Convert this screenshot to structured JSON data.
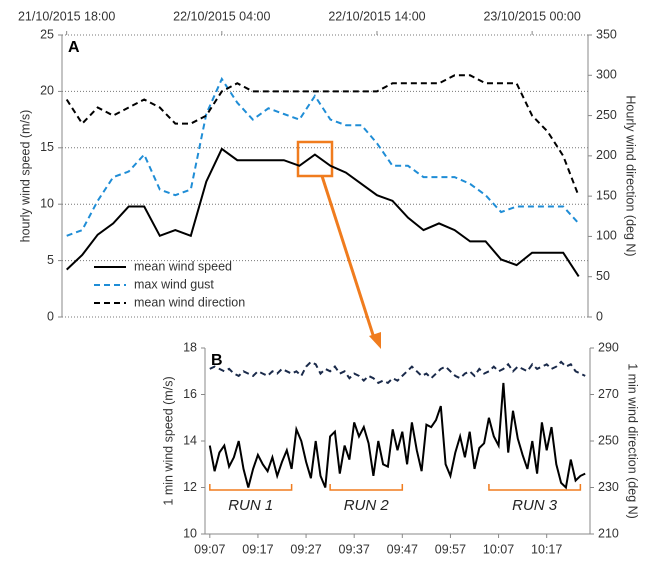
{
  "chart_data": [
    {
      "type": "line",
      "panel_label": "A",
      "y_label": "hourly wind speed (m/s)",
      "y2_label": "Hourly wind direction (deg N)",
      "x": [
        0,
        1,
        2,
        3,
        4,
        5,
        6,
        7,
        8,
        9,
        10,
        11,
        12,
        13,
        14,
        15,
        16,
        17,
        18,
        19,
        20,
        21,
        22,
        23,
        24,
        25,
        26,
        27,
        28,
        29,
        30,
        31,
        32,
        33
      ],
      "xlim": [
        -0.3,
        33.6
      ],
      "xticks": [
        {
          "value": 0,
          "label": "21/10/2015 18:00"
        },
        {
          "value": 10,
          "label": "22/10/2015 04:00"
        },
        {
          "value": 20,
          "label": "22/10/2015 14:00"
        },
        {
          "value": 30,
          "label": "23/10/2015 00:00"
        }
      ],
      "xaxis_position": "top",
      "ylim": [
        0,
        25
      ],
      "yticks": [
        0,
        5,
        10,
        15,
        20,
        25
      ],
      "y2lim": [
        0,
        350
      ],
      "y2ticks": [
        0,
        50,
        100,
        150,
        200,
        250,
        300,
        350
      ],
      "grid": true,
      "legend": "lower left",
      "series": [
        {
          "name": "mean wind speed",
          "color": "#000000",
          "line_style": "solid",
          "values": [
            4.2,
            5.5,
            7.3,
            8.3,
            9.8,
            9.8,
            7.2,
            7.7,
            7.2,
            12,
            14.9,
            13.9,
            13.9,
            13.9,
            13.9,
            13.4,
            14.4,
            13.4,
            12.8,
            11.8,
            10.8,
            10.3,
            8.8,
            7.7,
            8.3,
            7.7,
            6.7,
            6.7,
            5.1,
            4.6,
            5.7,
            5.7,
            5.7,
            3.6
          ]
        },
        {
          "name": "max wind gust",
          "color": "#1f8dd6",
          "line_style": "dashed",
          "values": [
            7.2,
            7.7,
            10.3,
            12.4,
            12.9,
            14.4,
            11.3,
            10.8,
            11.3,
            18,
            21.1,
            19,
            17.5,
            18.5,
            18,
            17.5,
            19.6,
            17.5,
            17,
            17,
            15.4,
            13.4,
            13.4,
            12.4,
            12.4,
            12.4,
            11.8,
            10.8,
            9.3,
            9.8,
            9.8,
            9.8,
            9.8,
            8.3
          ]
        },
        {
          "name": "mean wind direction",
          "color": "#000000",
          "line_style": "dashed",
          "axis": "y2",
          "values": [
            270,
            240,
            260,
            250,
            260,
            270,
            260,
            240,
            240,
            250,
            280,
            290,
            280,
            280,
            280,
            280,
            280,
            280,
            280,
            280,
            280,
            290,
            290,
            290,
            290,
            300,
            300,
            290,
            290,
            290,
            250,
            230,
            200,
            150
          ]
        }
      ]
    },
    {
      "type": "line",
      "panel_label": "B",
      "y_label": "1 min wind speed (m/s)",
      "y2_label": "1 min wind direction (deg N)",
      "x": [
        0,
        1,
        2,
        3,
        4,
        5,
        6,
        7,
        8,
        9,
        10,
        11,
        12,
        13,
        14,
        15,
        16,
        17,
        18,
        19,
        20,
        21,
        22,
        23,
        24,
        25,
        26,
        27,
        28,
        29,
        30,
        31,
        32,
        33,
        34,
        35,
        36,
        37,
        38,
        39,
        40,
        41,
        42,
        43,
        44,
        45,
        46,
        47,
        48,
        49,
        50,
        51,
        52,
        53,
        54,
        55,
        56,
        57,
        58,
        59,
        60,
        61,
        62,
        63,
        64,
        65,
        66,
        67,
        68,
        69,
        70,
        71,
        72,
        73,
        74,
        75,
        76,
        77,
        78
      ],
      "xlim": [
        -1,
        79
      ],
      "xticks": [
        {
          "value": 0,
          "label": "09:07"
        },
        {
          "value": 10,
          "label": "09:17"
        },
        {
          "value": 20,
          "label": "09:27"
        },
        {
          "value": 30,
          "label": "09:37"
        },
        {
          "value": 40,
          "label": "09:47"
        },
        {
          "value": 50,
          "label": "09:57"
        },
        {
          "value": 60,
          "label": "10:07"
        },
        {
          "value": 70,
          "label": "10:17"
        }
      ],
      "xaxis_position": "bottom",
      "ylim": [
        10,
        18
      ],
      "yticks": [
        10,
        12,
        14,
        16,
        18
      ],
      "y2lim": [
        210,
        290
      ],
      "y2ticks": [
        210,
        230,
        250,
        270,
        290
      ],
      "grid": false,
      "annotations": [
        {
          "label": "RUN 1",
          "start": 0,
          "end": 17
        },
        {
          "label": "RUN 2",
          "start": 25,
          "end": 40
        },
        {
          "label": "RUN 3",
          "start": 58,
          "end": 77
        }
      ],
      "series": [
        {
          "name": "1 min wind speed",
          "color": "#000000",
          "line_style": "solid",
          "values": [
            13.8,
            12.7,
            13.5,
            13.8,
            12.9,
            13.3,
            14.0,
            12.8,
            12.0,
            12.8,
            13.4,
            13.0,
            12.7,
            13.3,
            12.5,
            13.1,
            13.6,
            12.8,
            14.5,
            14.0,
            13.1,
            12.4,
            14.0,
            12.5,
            12.0,
            14.2,
            14.4,
            12.6,
            13.8,
            13.2,
            14.8,
            14.2,
            14.6,
            13.9,
            12.5,
            14.0,
            13.0,
            12.9,
            14.5,
            13.6,
            14.4,
            13.0,
            14.8,
            13.6,
            12.7,
            14.7,
            14.6,
            14.9,
            15.5,
            13.0,
            12.5,
            13.5,
            14.2,
            13.3,
            14.4,
            12.8,
            13.7,
            13.9,
            15.0,
            14.2,
            13.8,
            16.5,
            13.5,
            15.3,
            14.1,
            13.4,
            12.8,
            14.0,
            12.6,
            14.8,
            13.6,
            14.6,
            13.0,
            12.2,
            12.0,
            13.2,
            12.3,
            12.5,
            12.6
          ]
        },
        {
          "name": "1 min wind direction",
          "color": "#1a2a4a",
          "line_style": "dashed",
          "axis": "y2",
          "values": [
            281,
            282,
            281,
            280,
            281,
            279,
            278,
            280,
            279,
            278,
            280,
            279,
            278,
            280,
            279,
            281,
            280,
            279,
            280,
            278,
            282,
            284,
            283,
            279,
            281,
            280,
            282,
            279,
            280,
            277,
            279,
            278,
            276,
            278,
            277,
            275,
            276,
            275,
            277,
            276,
            278,
            280,
            282,
            280,
            278,
            279,
            277,
            279,
            281,
            282,
            280,
            278,
            277,
            279,
            280,
            278,
            281,
            279,
            280,
            282,
            280,
            281,
            283,
            280,
            282,
            281,
            280,
            283,
            281,
            282,
            283,
            281,
            282,
            284,
            282,
            283,
            280,
            279,
            278
          ]
        }
      ]
    }
  ]
}
